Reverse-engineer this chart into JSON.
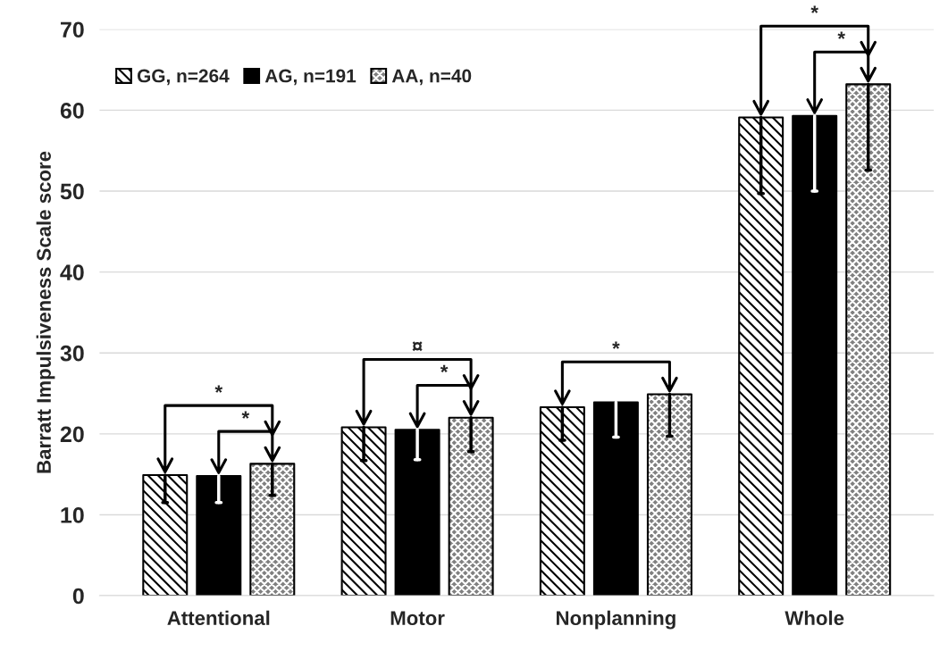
{
  "chart_data": {
    "type": "bar",
    "ylabel": "Barratt Impulsiveness Scale score",
    "categories": [
      "Attentional",
      "Motor",
      "Nonplanning",
      "Whole"
    ],
    "series": [
      {
        "name": "GG, n=264",
        "color": "#ffffff",
        "values": [
          14.9,
          20.8,
          23.3,
          59.1
        ],
        "errors": [
          [
            11.5,
            14.9
          ],
          [
            16.7,
            20.8
          ],
          [
            19.2,
            23.3
          ],
          [
            49.7,
            59.1
          ]
        ]
      },
      {
        "name": "AG, n=191",
        "color": "#000000",
        "values": [
          14.8,
          20.5,
          23.9,
          59.3
        ],
        "errors": [
          [
            11.5,
            14.8
          ],
          [
            16.8,
            20.5
          ],
          [
            19.6,
            23.9
          ],
          [
            50.0,
            59.3
          ]
        ]
      },
      {
        "name": "AA, n=40",
        "color": "#808080",
        "values": [
          16.3,
          22.0,
          24.9,
          63.2
        ],
        "errors": [
          [
            12.4,
            16.3
          ],
          [
            17.8,
            22.0
          ],
          [
            19.7,
            24.9
          ],
          [
            52.6,
            63.2
          ]
        ]
      }
    ],
    "ylim": [
      0,
      70
    ],
    "yticks": [
      0,
      10,
      20,
      30,
      40,
      50,
      60,
      70
    ],
    "grid": "y",
    "legend": "top left",
    "annotations": [
      "*",
      "*",
      "¤",
      "*",
      "*",
      "*",
      "*"
    ]
  }
}
